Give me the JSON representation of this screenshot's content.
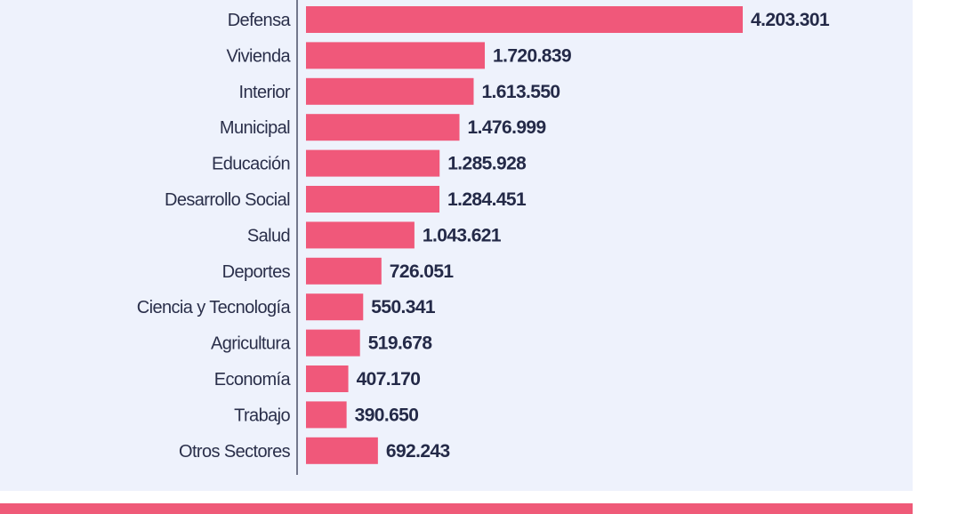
{
  "chart_data": {
    "type": "bar",
    "orientation": "horizontal",
    "categories": [
      "Defensa",
      "Vivienda",
      "Interior",
      "Municipal",
      "Educación",
      "Desarrollo Social",
      "Salud",
      "Deportes",
      "Ciencia y Tecnología",
      "Agricultura",
      "Economía",
      "Trabajo",
      "Otros Sectores"
    ],
    "values": [
      4203301,
      1720839,
      1613550,
      1476999,
      1285928,
      1284451,
      1043621,
      726051,
      550341,
      519678,
      407170,
      390650,
      692243
    ],
    "value_labels": [
      "4.203.301",
      "1.720.839",
      "1.613.550",
      "1.476.999",
      "1.285.928",
      "1.284.451",
      "1.043.621",
      "726.051",
      "550.341",
      "519.678",
      "407.170",
      "390.650",
      "692.243"
    ],
    "bar_color": "#f0587a",
    "grid": false,
    "legend": "none"
  },
  "colors": {
    "panel_background": "#eef2fc",
    "accent": "#f0587a",
    "text": "#242a48"
  }
}
